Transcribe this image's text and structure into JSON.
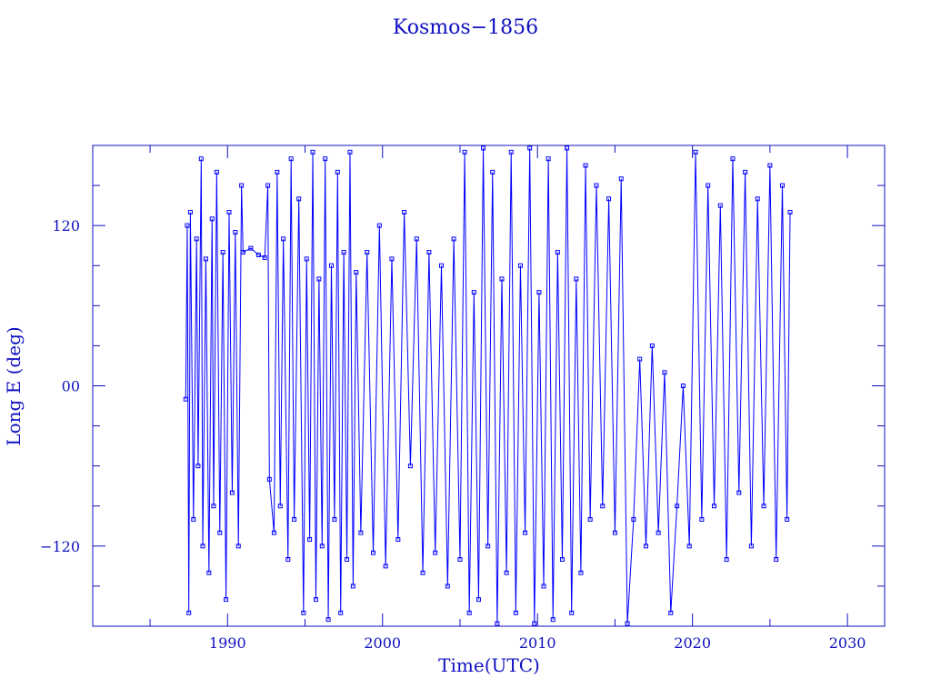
{
  "chart_data": {
    "type": "line",
    "title": "Kosmos−1856",
    "xlabel": "Time(UTC)",
    "ylabel": "Long E (deg)",
    "xlim": [
      1981.3,
      2032.4
    ],
    "ylim": [
      -180,
      180
    ],
    "xticks": [
      1990,
      2000,
      2010,
      2020,
      2030
    ],
    "xtick_labels": [
      "1990",
      "2000",
      "2010",
      "2020",
      "2030"
    ],
    "yticks": [
      120,
      0,
      -120
    ],
    "ytick_labels": [
      "120",
      "00",
      "−120"
    ],
    "grid": false,
    "markers": "square",
    "colors": {
      "series": "#0000ff",
      "axes": "#1010c0"
    },
    "series": [
      {
        "points": [
          [
            1987.3,
            -10
          ],
          [
            1987.4,
            120
          ],
          [
            1987.5,
            -170
          ],
          [
            1987.6,
            130
          ],
          [
            1987.8,
            -100
          ],
          [
            1988.0,
            110
          ],
          [
            1988.1,
            -60
          ],
          [
            1988.3,
            170
          ],
          [
            1988.4,
            -120
          ],
          [
            1988.6,
            95
          ],
          [
            1988.8,
            -140
          ],
          [
            1989.0,
            125
          ],
          [
            1989.1,
            -90
          ],
          [
            1989.3,
            160
          ],
          [
            1989.5,
            -110
          ],
          [
            1989.7,
            100
          ],
          [
            1989.9,
            -160
          ],
          [
            1990.1,
            130
          ],
          [
            1990.3,
            -80
          ],
          [
            1990.5,
            115
          ],
          [
            1990.7,
            -120
          ],
          [
            1990.9,
            150
          ],
          [
            1991.0,
            100
          ],
          [
            1991.5,
            103
          ],
          [
            1992.0,
            98
          ],
          [
            1992.4,
            96
          ],
          [
            1992.6,
            150
          ],
          [
            1992.7,
            -70
          ],
          [
            1993.0,
            -110
          ],
          [
            1993.2,
            160
          ],
          [
            1993.4,
            -90
          ],
          [
            1993.6,
            110
          ],
          [
            1993.9,
            -130
          ],
          [
            1994.1,
            170
          ],
          [
            1994.3,
            -100
          ],
          [
            1994.6,
            140
          ],
          [
            1994.9,
            -170
          ],
          [
            1995.1,
            95
          ],
          [
            1995.3,
            -115
          ],
          [
            1995.5,
            175
          ],
          [
            1995.7,
            -160
          ],
          [
            1995.9,
            80
          ],
          [
            1996.1,
            -120
          ],
          [
            1996.3,
            170
          ],
          [
            1996.5,
            -175
          ],
          [
            1996.7,
            90
          ],
          [
            1996.9,
            -100
          ],
          [
            1997.1,
            160
          ],
          [
            1997.3,
            -170
          ],
          [
            1997.5,
            100
          ],
          [
            1997.7,
            -130
          ],
          [
            1997.9,
            175
          ],
          [
            1998.1,
            -150
          ],
          [
            1998.3,
            85
          ],
          [
            1998.6,
            -110
          ],
          [
            1999.0,
            100
          ],
          [
            1999.4,
            -125
          ],
          [
            1999.8,
            120
          ],
          [
            2000.2,
            -135
          ],
          [
            2000.6,
            95
          ],
          [
            2001.0,
            -115
          ],
          [
            2001.4,
            130
          ],
          [
            2001.8,
            -60
          ],
          [
            2002.2,
            110
          ],
          [
            2002.6,
            -140
          ],
          [
            2003.0,
            100
          ],
          [
            2003.4,
            -125
          ],
          [
            2003.8,
            90
          ],
          [
            2004.2,
            -150
          ],
          [
            2004.6,
            110
          ],
          [
            2005.0,
            -130
          ],
          [
            2005.3,
            175
          ],
          [
            2005.6,
            -170
          ],
          [
            2005.9,
            70
          ],
          [
            2006.2,
            -160
          ],
          [
            2006.5,
            178
          ],
          [
            2006.8,
            -120
          ],
          [
            2007.1,
            160
          ],
          [
            2007.4,
            -178
          ],
          [
            2007.7,
            80
          ],
          [
            2008.0,
            -140
          ],
          [
            2008.3,
            175
          ],
          [
            2008.6,
            -170
          ],
          [
            2008.9,
            90
          ],
          [
            2009.2,
            -110
          ],
          [
            2009.5,
            178
          ],
          [
            2009.8,
            -178
          ],
          [
            2010.1,
            70
          ],
          [
            2010.4,
            -150
          ],
          [
            2010.7,
            170
          ],
          [
            2011.0,
            -175
          ],
          [
            2011.3,
            100
          ],
          [
            2011.6,
            -130
          ],
          [
            2011.9,
            178
          ],
          [
            2012.2,
            -170
          ],
          [
            2012.5,
            80
          ],
          [
            2012.8,
            -140
          ],
          [
            2013.1,
            165
          ],
          [
            2013.4,
            -100
          ],
          [
            2013.8,
            150
          ],
          [
            2014.2,
            -90
          ],
          [
            2014.6,
            140
          ],
          [
            2015.0,
            -110
          ],
          [
            2015.4,
            155
          ],
          [
            2015.8,
            -178
          ],
          [
            2016.2,
            -100
          ],
          [
            2016.6,
            20
          ],
          [
            2017.0,
            -120
          ],
          [
            2017.4,
            30
          ],
          [
            2017.8,
            -110
          ],
          [
            2018.2,
            10
          ],
          [
            2018.6,
            -170
          ],
          [
            2019.0,
            -90
          ],
          [
            2019.4,
            0
          ],
          [
            2019.8,
            -120
          ],
          [
            2020.2,
            175
          ],
          [
            2020.6,
            -100
          ],
          [
            2021.0,
            150
          ],
          [
            2021.4,
            -90
          ],
          [
            2021.8,
            135
          ],
          [
            2022.2,
            -130
          ],
          [
            2022.6,
            170
          ],
          [
            2023.0,
            -80
          ],
          [
            2023.4,
            160
          ],
          [
            2023.8,
            -120
          ],
          [
            2024.2,
            140
          ],
          [
            2024.6,
            -90
          ],
          [
            2025.0,
            165
          ],
          [
            2025.4,
            -130
          ],
          [
            2025.8,
            150
          ],
          [
            2026.1,
            -100
          ],
          [
            2026.3,
            130
          ]
        ]
      }
    ]
  }
}
